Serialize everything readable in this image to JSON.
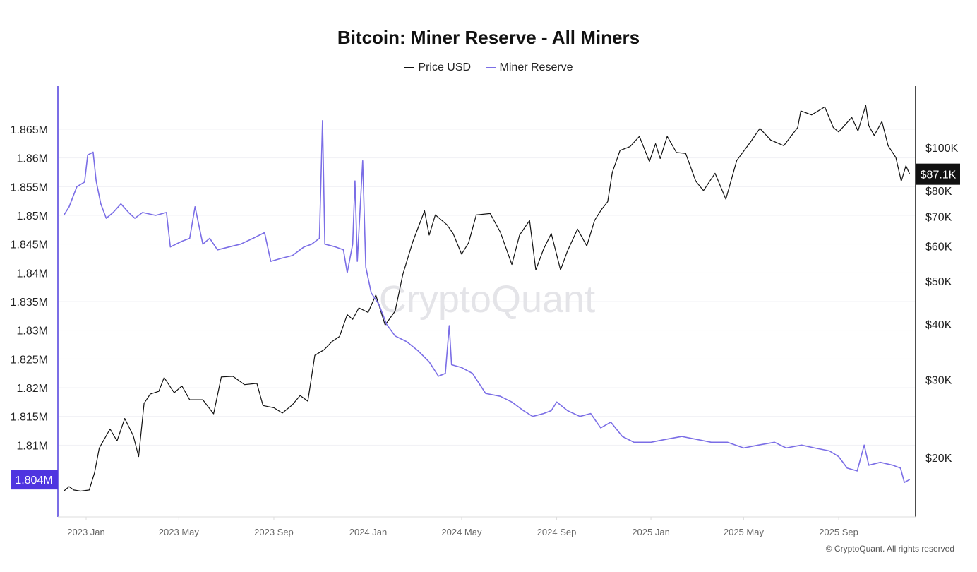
{
  "chart_data": {
    "type": "line",
    "title": "Bitcoin: Miner Reserve - All Miners",
    "legend_position": "top-center",
    "grid": true,
    "watermark": "CryptoQuant",
    "copyright": "© CryptoQuant. All rights reserved",
    "x_ticks": [
      "2023 Jan",
      "2023 May",
      "2023 Sep",
      "2024 Jan",
      "2024 May",
      "2024 Sep",
      "2025 Jan",
      "2025 May",
      "2025 Sep"
    ],
    "left_axis": {
      "ticks": [
        "1.865M",
        "1.86M",
        "1.855M",
        "1.85M",
        "1.845M",
        "1.84M",
        "1.835M",
        "1.83M",
        "1.825M",
        "1.82M",
        "1.815M",
        "1.81M"
      ],
      "tick_values": [
        1.865,
        1.86,
        1.855,
        1.85,
        1.845,
        1.84,
        1.835,
        1.83,
        1.825,
        1.82,
        1.815,
        1.81
      ],
      "current_label": "1.804M",
      "ylim": [
        1.7975,
        1.8725
      ],
      "color": "#4f35e0"
    },
    "right_axis": {
      "scale": "log",
      "ticks": [
        "$100K",
        "$80K",
        "$70K",
        "$60K",
        "$50K",
        "$40K",
        "$30K",
        "$20K"
      ],
      "tick_values": [
        100,
        80,
        70,
        60,
        50,
        40,
        30,
        20
      ],
      "current_label": "$87.1K"
    },
    "series": [
      {
        "name": "Price USD",
        "axis": "right",
        "unit": "$K",
        "color": "#111111",
        "points": [
          [
            "2022-12-03",
            16.8
          ],
          [
            "2022-12-10",
            17.2
          ],
          [
            "2022-12-16",
            16.9
          ],
          [
            "2022-12-25",
            16.8
          ],
          [
            "2023-01-05",
            16.9
          ],
          [
            "2023-01-12",
            18.5
          ],
          [
            "2023-01-18",
            21.0
          ],
          [
            "2023-02-01",
            23.2
          ],
          [
            "2023-02-10",
            21.8
          ],
          [
            "2023-02-20",
            24.5
          ],
          [
            "2023-03-03",
            22.4
          ],
          [
            "2023-03-10",
            20.1
          ],
          [
            "2023-03-17",
            26.5
          ],
          [
            "2023-03-25",
            27.8
          ],
          [
            "2023-04-05",
            28.2
          ],
          [
            "2023-04-12",
            30.3
          ],
          [
            "2023-04-25",
            28.0
          ],
          [
            "2023-05-05",
            29.0
          ],
          [
            "2023-05-15",
            27.0
          ],
          [
            "2023-06-01",
            27.0
          ],
          [
            "2023-06-15",
            25.1
          ],
          [
            "2023-06-25",
            30.4
          ],
          [
            "2023-07-10",
            30.5
          ],
          [
            "2023-07-25",
            29.2
          ],
          [
            "2023-08-10",
            29.4
          ],
          [
            "2023-08-18",
            26.2
          ],
          [
            "2023-09-01",
            25.9
          ],
          [
            "2023-09-12",
            25.2
          ],
          [
            "2023-09-25",
            26.3
          ],
          [
            "2023-10-05",
            27.6
          ],
          [
            "2023-10-15",
            26.8
          ],
          [
            "2023-10-24",
            34.0
          ],
          [
            "2023-11-05",
            35.0
          ],
          [
            "2023-11-15",
            36.5
          ],
          [
            "2023-11-25",
            37.5
          ],
          [
            "2023-12-05",
            42.0
          ],
          [
            "2023-12-12",
            41.0
          ],
          [
            "2023-12-20",
            43.5
          ],
          [
            "2024-01-01",
            42.5
          ],
          [
            "2024-01-11",
            46.5
          ],
          [
            "2024-01-23",
            39.8
          ],
          [
            "2024-02-05",
            42.8
          ],
          [
            "2024-02-15",
            51.8
          ],
          [
            "2024-02-28",
            61.5
          ],
          [
            "2024-03-14",
            72.0
          ],
          [
            "2024-03-20",
            63.5
          ],
          [
            "2024-03-28",
            70.5
          ],
          [
            "2024-04-12",
            67.0
          ],
          [
            "2024-04-20",
            64.0
          ],
          [
            "2024-05-01",
            57.5
          ],
          [
            "2024-05-10",
            61.0
          ],
          [
            "2024-05-20",
            70.5
          ],
          [
            "2024-06-07",
            71.0
          ],
          [
            "2024-06-20",
            64.5
          ],
          [
            "2024-07-05",
            54.5
          ],
          [
            "2024-07-15",
            63.5
          ],
          [
            "2024-07-28",
            68.5
          ],
          [
            "2024-08-05",
            53.0
          ],
          [
            "2024-08-15",
            59.0
          ],
          [
            "2024-08-25",
            64.0
          ],
          [
            "2024-09-06",
            53.0
          ],
          [
            "2024-09-15",
            58.5
          ],
          [
            "2024-09-28",
            65.5
          ],
          [
            "2024-10-10",
            60.0
          ],
          [
            "2024-10-20",
            68.5
          ],
          [
            "2024-10-29",
            72.5
          ],
          [
            "2024-11-06",
            75.5
          ],
          [
            "2024-11-12",
            88.0
          ],
          [
            "2024-11-22",
            98.5
          ],
          [
            "2024-12-05",
            100.5
          ],
          [
            "2024-12-17",
            106.0
          ],
          [
            "2024-12-30",
            93.0
          ],
          [
            "2025-01-07",
            102.0
          ],
          [
            "2025-01-13",
            94.5
          ],
          [
            "2025-01-22",
            106.0
          ],
          [
            "2025-02-03",
            97.5
          ],
          [
            "2025-02-15",
            97.0
          ],
          [
            "2025-02-28",
            84.0
          ],
          [
            "2025-03-10",
            80.0
          ],
          [
            "2025-03-25",
            87.5
          ],
          [
            "2025-04-08",
            76.5
          ],
          [
            "2025-04-22",
            93.5
          ],
          [
            "2025-05-10",
            103.0
          ],
          [
            "2025-05-22",
            110.5
          ],
          [
            "2025-06-05",
            104.0
          ],
          [
            "2025-06-22",
            101.0
          ],
          [
            "2025-07-10",
            111.0
          ],
          [
            "2025-07-14",
            121.0
          ],
          [
            "2025-07-28",
            118.5
          ],
          [
            "2025-08-14",
            123.5
          ],
          [
            "2025-08-25",
            111.0
          ],
          [
            "2025-09-01",
            108.5
          ],
          [
            "2025-09-18",
            117.0
          ],
          [
            "2025-09-26",
            109.0
          ],
          [
            "2025-10-06",
            124.5
          ],
          [
            "2025-10-10",
            112.0
          ],
          [
            "2025-10-17",
            106.5
          ],
          [
            "2025-10-27",
            114.5
          ],
          [
            "2025-11-04",
            101.0
          ],
          [
            "2025-11-14",
            95.0
          ],
          [
            "2025-11-21",
            84.0
          ],
          [
            "2025-11-27",
            91.0
          ],
          [
            "2025-12-02",
            87.1
          ]
        ]
      },
      {
        "name": "Miner Reserve",
        "axis": "left",
        "unit": "M BTC",
        "color": "#7b6ee6",
        "points": [
          [
            "2022-12-03",
            1.85
          ],
          [
            "2022-12-10",
            1.8515
          ],
          [
            "2022-12-20",
            1.855
          ],
          [
            "2022-12-30",
            1.8558
          ],
          [
            "2023-01-03",
            1.8605
          ],
          [
            "2023-01-10",
            1.861
          ],
          [
            "2023-01-14",
            1.856
          ],
          [
            "2023-01-20",
            1.852
          ],
          [
            "2023-01-27",
            1.8495
          ],
          [
            "2023-02-05",
            1.8505
          ],
          [
            "2023-02-15",
            1.852
          ],
          [
            "2023-02-25",
            1.8505
          ],
          [
            "2023-03-05",
            1.8495
          ],
          [
            "2023-03-15",
            1.8505
          ],
          [
            "2023-04-01",
            1.85
          ],
          [
            "2023-04-15",
            1.8505
          ],
          [
            "2023-04-20",
            1.8445
          ],
          [
            "2023-05-05",
            1.8455
          ],
          [
            "2023-05-15",
            1.846
          ],
          [
            "2023-05-22",
            1.8515
          ],
          [
            "2023-06-01",
            1.845
          ],
          [
            "2023-06-10",
            1.846
          ],
          [
            "2023-06-20",
            1.844
          ],
          [
            "2023-07-05",
            1.8445
          ],
          [
            "2023-07-20",
            1.845
          ],
          [
            "2023-08-05",
            1.846
          ],
          [
            "2023-08-20",
            1.847
          ],
          [
            "2023-08-28",
            1.842
          ],
          [
            "2023-09-10",
            1.8425
          ],
          [
            "2023-09-25",
            1.843
          ],
          [
            "2023-10-10",
            1.8445
          ],
          [
            "2023-10-20",
            1.845
          ],
          [
            "2023-10-30",
            1.846
          ],
          [
            "2023-11-03",
            1.8665
          ],
          [
            "2023-11-06",
            1.845
          ],
          [
            "2023-11-20",
            1.8445
          ],
          [
            "2023-11-30",
            1.844
          ],
          [
            "2023-12-05",
            1.84
          ],
          [
            "2023-12-12",
            1.845
          ],
          [
            "2023-12-15",
            1.856
          ],
          [
            "2023-12-18",
            1.842
          ],
          [
            "2023-12-25",
            1.8595
          ],
          [
            "2023-12-29",
            1.841
          ],
          [
            "2024-01-05",
            1.8365
          ],
          [
            "2024-01-15",
            1.8345
          ],
          [
            "2024-01-25",
            1.831
          ],
          [
            "2024-02-05",
            1.829
          ],
          [
            "2024-02-20",
            1.828
          ],
          [
            "2024-03-05",
            1.8265
          ],
          [
            "2024-03-20",
            1.8245
          ],
          [
            "2024-04-01",
            1.822
          ],
          [
            "2024-04-10",
            1.8225
          ],
          [
            "2024-04-15",
            1.8308
          ],
          [
            "2024-04-18",
            1.824
          ],
          [
            "2024-05-01",
            1.8235
          ],
          [
            "2024-05-15",
            1.8225
          ],
          [
            "2024-06-01",
            1.819
          ],
          [
            "2024-06-20",
            1.8185
          ],
          [
            "2024-07-05",
            1.8175
          ],
          [
            "2024-07-20",
            1.816
          ],
          [
            "2024-08-01",
            1.815
          ],
          [
            "2024-08-15",
            1.8155
          ],
          [
            "2024-08-25",
            1.816
          ],
          [
            "2024-09-01",
            1.8175
          ],
          [
            "2024-09-15",
            1.816
          ],
          [
            "2024-10-01",
            1.815
          ],
          [
            "2024-10-15",
            1.8155
          ],
          [
            "2024-10-28",
            1.813
          ],
          [
            "2024-11-10",
            1.814
          ],
          [
            "2024-11-25",
            1.8115
          ],
          [
            "2024-12-10",
            1.8105
          ],
          [
            "2025-01-01",
            1.8105
          ],
          [
            "2025-01-20",
            1.811
          ],
          [
            "2025-02-10",
            1.8115
          ],
          [
            "2025-03-01",
            1.811
          ],
          [
            "2025-03-20",
            1.8105
          ],
          [
            "2025-04-10",
            1.8105
          ],
          [
            "2025-05-01",
            1.8095
          ],
          [
            "2025-05-20",
            1.81
          ],
          [
            "2025-06-10",
            1.8105
          ],
          [
            "2025-06-25",
            1.8095
          ],
          [
            "2025-07-15",
            1.81
          ],
          [
            "2025-08-01",
            1.8095
          ],
          [
            "2025-08-20",
            1.809
          ],
          [
            "2025-09-01",
            1.808
          ],
          [
            "2025-09-12",
            1.806
          ],
          [
            "2025-09-25",
            1.8055
          ],
          [
            "2025-10-04",
            1.81
          ],
          [
            "2025-10-10",
            1.8065
          ],
          [
            "2025-10-25",
            1.807
          ],
          [
            "2025-11-10",
            1.8065
          ],
          [
            "2025-11-20",
            1.806
          ],
          [
            "2025-11-25",
            1.8035
          ],
          [
            "2025-12-02",
            1.804
          ]
        ]
      }
    ]
  }
}
